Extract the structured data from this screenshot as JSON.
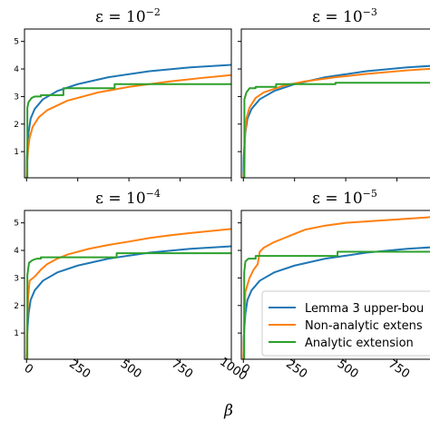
{
  "chart_data": {
    "type": "line",
    "xlabel": "β",
    "xticks": [
      0,
      250,
      500,
      750,
      1000
    ],
    "xlim": [
      -10,
      1000
    ],
    "ylim": [
      0.05,
      5.45
    ],
    "yticks": [
      1,
      2,
      3,
      4,
      5
    ],
    "ytick_labels": [
      "1",
      "2",
      "3",
      "4",
      "5"
    ],
    "grid": false,
    "legend": {
      "placement": "lower-right of bottom-right panel",
      "entries": [
        {
          "label": "Lemma 3 upper-bou",
          "color": "#1f77b4"
        },
        {
          "label": "Non-analytic extens",
          "color": "#ff7f0e"
        },
        {
          "label": "Analytic extension",
          "color": "#2ca02c"
        }
      ]
    },
    "series_colors": {
      "lemma": "#1f77b4",
      "nonanalytic": "#ff7f0e",
      "analytic": "#2ca02c"
    },
    "panels": [
      {
        "title_base": "ε = 10",
        "title_exp": "−2",
        "show_x_tick_labels": false,
        "show_y_tick_labels": true,
        "lemma": [
          [
            0,
            0
          ],
          [
            2,
            0.8
          ],
          [
            5,
            1.2
          ],
          [
            10,
            1.7
          ],
          [
            20,
            2.2
          ],
          [
            40,
            2.55
          ],
          [
            80,
            2.9
          ],
          [
            150,
            3.2
          ],
          [
            250,
            3.45
          ],
          [
            400,
            3.7
          ],
          [
            600,
            3.92
          ],
          [
            800,
            4.06
          ],
          [
            1000,
            4.15
          ]
        ],
        "nonanalytic": [
          [
            0,
            0
          ],
          [
            3,
            0.6
          ],
          [
            8,
            1.1
          ],
          [
            15,
            1.5
          ],
          [
            30,
            1.9
          ],
          [
            60,
            2.25
          ],
          [
            100,
            2.5
          ],
          [
            200,
            2.85
          ],
          [
            350,
            3.15
          ],
          [
            500,
            3.35
          ],
          [
            700,
            3.55
          ],
          [
            850,
            3.67
          ],
          [
            1000,
            3.78
          ]
        ],
        "analytic": [
          [
            0,
            0
          ],
          [
            4,
            0
          ],
          [
            4,
            2.6
          ],
          [
            10,
            2.8
          ],
          [
            25,
            2.95
          ],
          [
            40,
            3.0
          ],
          [
            70,
            3.0
          ],
          [
            70,
            3.05
          ],
          [
            180,
            3.05
          ],
          [
            180,
            3.3
          ],
          [
            430,
            3.3
          ],
          [
            430,
            3.45
          ],
          [
            1000,
            3.45
          ]
        ]
      },
      {
        "title_base": "ε = 10",
        "title_exp": "−3",
        "show_x_tick_labels": false,
        "show_y_tick_labels": false,
        "lemma": [
          [
            0,
            0
          ],
          [
            2,
            0.8
          ],
          [
            5,
            1.2
          ],
          [
            10,
            1.7
          ],
          [
            20,
            2.2
          ],
          [
            40,
            2.55
          ],
          [
            80,
            2.9
          ],
          [
            150,
            3.2
          ],
          [
            250,
            3.45
          ],
          [
            400,
            3.7
          ],
          [
            600,
            3.92
          ],
          [
            800,
            4.06
          ],
          [
            1000,
            4.15
          ]
        ],
        "nonanalytic": [
          [
            0,
            0
          ],
          [
            5,
            0.5
          ],
          [
            8,
            1.6
          ],
          [
            15,
            2.2
          ],
          [
            30,
            2.6
          ],
          [
            60,
            2.95
          ],
          [
            100,
            3.15
          ],
          [
            200,
            3.4
          ],
          [
            300,
            3.55
          ],
          [
            450,
            3.7
          ],
          [
            600,
            3.82
          ],
          [
            800,
            3.95
          ],
          [
            1000,
            4.05
          ]
        ],
        "analytic": [
          [
            0,
            0
          ],
          [
            5,
            0
          ],
          [
            5,
            2.9
          ],
          [
            15,
            3.15
          ],
          [
            30,
            3.3
          ],
          [
            60,
            3.3
          ],
          [
            60,
            3.35
          ],
          [
            160,
            3.35
          ],
          [
            160,
            3.45
          ],
          [
            450,
            3.45
          ],
          [
            450,
            3.5
          ],
          [
            1000,
            3.5
          ]
        ]
      },
      {
        "title_base": "ε = 10",
        "title_exp": "−4",
        "show_x_tick_labels": true,
        "show_y_tick_labels": true,
        "lemma": [
          [
            0,
            0
          ],
          [
            2,
            0.8
          ],
          [
            5,
            1.2
          ],
          [
            10,
            1.7
          ],
          [
            20,
            2.2
          ],
          [
            40,
            2.55
          ],
          [
            80,
            2.9
          ],
          [
            150,
            3.2
          ],
          [
            250,
            3.45
          ],
          [
            400,
            3.7
          ],
          [
            600,
            3.92
          ],
          [
            800,
            4.06
          ],
          [
            1000,
            4.15
          ]
        ],
        "nonanalytic": [
          [
            0,
            0
          ],
          [
            3,
            1.3
          ],
          [
            8,
            2.3
          ],
          [
            15,
            2.9
          ],
          [
            40,
            3.05
          ],
          [
            70,
            3.3
          ],
          [
            100,
            3.5
          ],
          [
            150,
            3.7
          ],
          [
            200,
            3.85
          ],
          [
            300,
            4.05
          ],
          [
            400,
            4.2
          ],
          [
            500,
            4.32
          ],
          [
            600,
            4.45
          ],
          [
            700,
            4.55
          ],
          [
            800,
            4.63
          ],
          [
            1000,
            4.78
          ]
        ],
        "analytic": [
          [
            0,
            0
          ],
          [
            4,
            0
          ],
          [
            4,
            3.1
          ],
          [
            12,
            3.55
          ],
          [
            30,
            3.65
          ],
          [
            50,
            3.7
          ],
          [
            70,
            3.7
          ],
          [
            70,
            3.75
          ],
          [
            440,
            3.75
          ],
          [
            440,
            3.9
          ],
          [
            1000,
            3.9
          ]
        ]
      },
      {
        "title_base": "ε = 10",
        "title_exp": "−5",
        "show_x_tick_labels": true,
        "show_y_tick_labels": false,
        "lemma": [
          [
            0,
            0
          ],
          [
            2,
            0.8
          ],
          [
            5,
            1.2
          ],
          [
            10,
            1.7
          ],
          [
            20,
            2.2
          ],
          [
            40,
            2.55
          ],
          [
            80,
            2.9
          ],
          [
            150,
            3.2
          ],
          [
            250,
            3.45
          ],
          [
            400,
            3.7
          ],
          [
            600,
            3.92
          ],
          [
            800,
            4.06
          ],
          [
            1000,
            4.15
          ]
        ],
        "nonanalytic": [
          [
            0,
            0
          ],
          [
            4,
            1.2
          ],
          [
            10,
            2.5
          ],
          [
            30,
            3.0
          ],
          [
            50,
            3.3
          ],
          [
            70,
            3.5
          ],
          [
            80,
            3.95
          ],
          [
            100,
            4.1
          ],
          [
            150,
            4.3
          ],
          [
            200,
            4.45
          ],
          [
            250,
            4.6
          ],
          [
            300,
            4.75
          ],
          [
            400,
            4.9
          ],
          [
            500,
            5.0
          ],
          [
            600,
            5.05
          ],
          [
            700,
            5.1
          ],
          [
            800,
            5.15
          ],
          [
            900,
            5.2
          ],
          [
            1000,
            5.25
          ]
        ],
        "analytic": [
          [
            0,
            0
          ],
          [
            4,
            0
          ],
          [
            4,
            3.2
          ],
          [
            10,
            3.6
          ],
          [
            25,
            3.7
          ],
          [
            60,
            3.7
          ],
          [
            60,
            3.8
          ],
          [
            460,
            3.8
          ],
          [
            460,
            3.95
          ],
          [
            1000,
            3.95
          ]
        ]
      }
    ]
  }
}
